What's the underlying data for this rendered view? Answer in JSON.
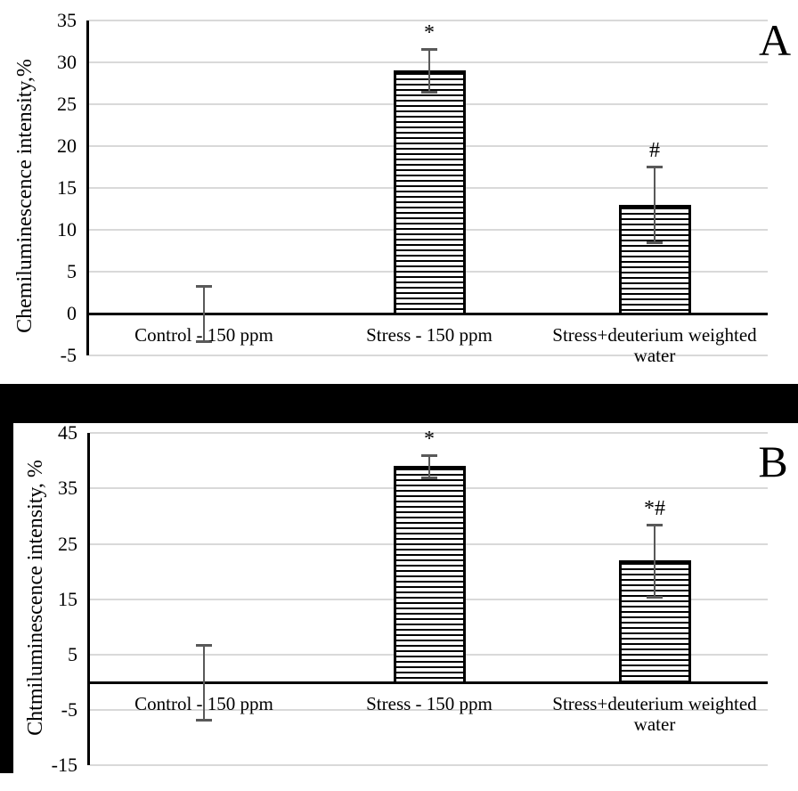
{
  "colors": {
    "background": "#ffffff",
    "gridline": "#d9d9d9",
    "axis": "#000000",
    "error_bar": "#595959",
    "bar_stripe": "#000000",
    "bar_fill": "#ffffff",
    "divider": "#000000",
    "text": "#000000"
  },
  "chart_data": [
    {
      "type": "bar",
      "panel_label": "A",
      "title": "",
      "xlabel": "",
      "ylabel": "Chemiluminescence intensity,%",
      "categories": [
        "Control - 150 ppm",
        "Stress - 150 ppm",
        "Stress+deuterium weighted water"
      ],
      "values": [
        0,
        29,
        13
      ],
      "errors": [
        3.3,
        2.5,
        4.5
      ],
      "significance": [
        "",
        "*",
        "#"
      ],
      "ylim": [
        -5,
        35
      ],
      "ytick_step": 5,
      "yticks": [
        35,
        30,
        25,
        20,
        15,
        10,
        5,
        0,
        -5
      ],
      "grid": true,
      "legend": false,
      "bar_pattern": "horizontal-stripes"
    },
    {
      "type": "bar",
      "panel_label": "B",
      "title": "",
      "xlabel": "",
      "ylabel": "Chtmiluminescence intensity, %",
      "categories": [
        "Control - 150 ppm",
        "Stress - 150 ppm",
        "Stress+deuterium weighted water"
      ],
      "values": [
        0,
        39,
        22
      ],
      "errors": [
        6.7,
        2,
        6.5
      ],
      "significance": [
        "",
        "*",
        "*#"
      ],
      "ylim": [
        -15,
        45
      ],
      "ytick_step": 10,
      "yticks": [
        45,
        35,
        25,
        15,
        5,
        -5,
        -15
      ],
      "grid": true,
      "legend": false,
      "bar_pattern": "horizontal-stripes"
    }
  ]
}
